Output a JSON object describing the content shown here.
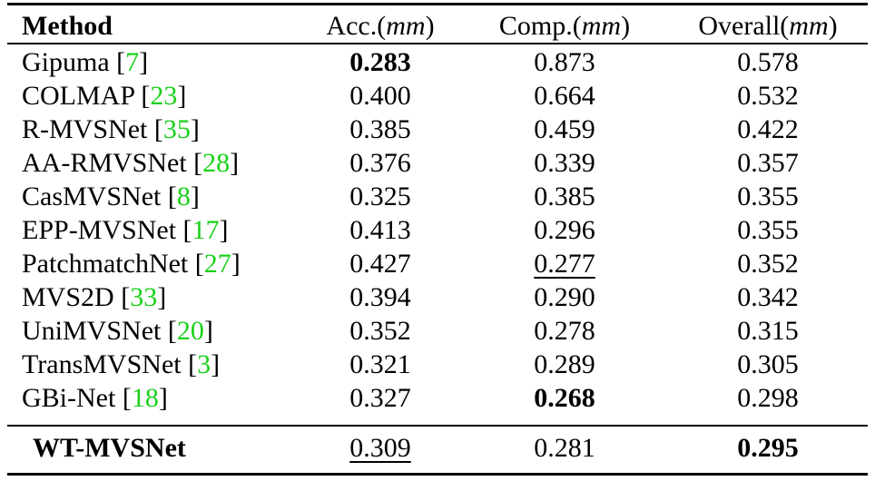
{
  "table": {
    "header": {
      "method": "Method",
      "acc_label": "Acc.(",
      "acc_unit": "mm",
      "comp_label": "Comp.(",
      "comp_unit": "mm",
      "overall_label": "Overall(",
      "overall_unit": "mm",
      "close_paren": ")"
    },
    "rows": [
      {
        "method": "Gipuma",
        "ref": "7",
        "acc": "0.283",
        "comp": "0.873",
        "overall": "0.578"
      },
      {
        "method": "COLMAP",
        "ref": "23",
        "acc": "0.400",
        "comp": "0.664",
        "overall": "0.532"
      },
      {
        "method": "R-MVSNet",
        "ref": "35",
        "acc": "0.385",
        "comp": "0.459",
        "overall": "0.422"
      },
      {
        "method": "AA-RMVSNet",
        "ref": "28",
        "acc": "0.376",
        "comp": "0.339",
        "overall": "0.357"
      },
      {
        "method": "CasMVSNet",
        "ref": "8",
        "acc": "0.325",
        "comp": "0.385",
        "overall": "0.355"
      },
      {
        "method": "EPP-MVSNet",
        "ref": "17",
        "acc": "0.413",
        "comp": "0.296",
        "overall": "0.355"
      },
      {
        "method": "PatchmatchNet",
        "ref": "27",
        "acc": "0.427",
        "comp": "0.277",
        "overall": "0.352"
      },
      {
        "method": "MVS2D",
        "ref": "33",
        "acc": "0.394",
        "comp": "0.290",
        "overall": "0.342"
      },
      {
        "method": "UniMVSNet",
        "ref": "20",
        "acc": "0.352",
        "comp": "0.278",
        "overall": "0.315"
      },
      {
        "method": "TransMVSNet",
        "ref": "3",
        "acc": "0.321",
        "comp": "0.289",
        "overall": "0.305"
      },
      {
        "method": "GBi-Net",
        "ref": "18",
        "acc": "0.327",
        "comp": "0.268",
        "overall": "0.298"
      }
    ],
    "final": {
      "method": "WT-MVSNet",
      "acc": "0.309",
      "comp": "0.281",
      "overall": "0.295"
    }
  }
}
